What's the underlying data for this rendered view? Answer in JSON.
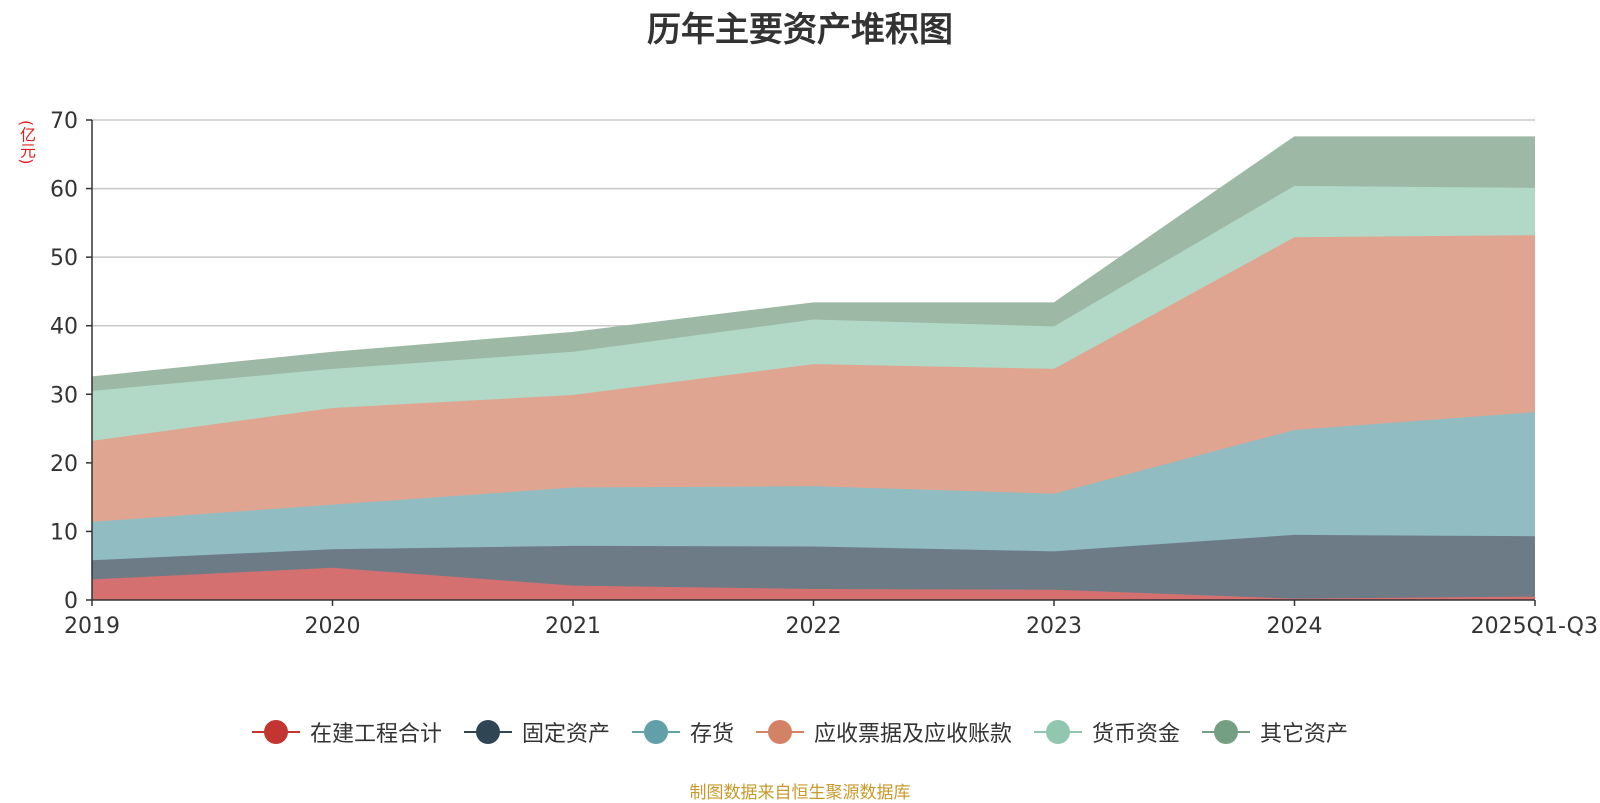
{
  "chart_data": {
    "type": "area",
    "stacked": true,
    "title": "历年主要资产堆积图",
    "unit_label": "(亿元)",
    "categories": [
      "2019",
      "2020",
      "2021",
      "2022",
      "2023",
      "2024",
      "2025Q1-Q3"
    ],
    "y_ticks": [
      "0",
      "10",
      "20",
      "30",
      "40",
      "50",
      "60",
      "70"
    ],
    "ylim": [
      0,
      70
    ],
    "grid": true,
    "legend_position": "bottom",
    "series": [
      {
        "name": "在建工程合计",
        "color": "#c23531",
        "area_color": "#d47170",
        "values": [
          3.0,
          4.7,
          2.1,
          1.6,
          1.5,
          0.2,
          0.5
        ]
      },
      {
        "name": "固定资产",
        "color": "#2f4554",
        "area_color": "#6d7b87",
        "values": [
          2.8,
          2.7,
          5.8,
          6.2,
          5.6,
          9.3,
          8.8
        ]
      },
      {
        "name": "存货",
        "color": "#61a0a8",
        "area_color": "#90bcc2",
        "values": [
          5.6,
          6.5,
          8.5,
          8.8,
          8.4,
          15.3,
          18.1
        ]
      },
      {
        "name": "应收票据及应收账款",
        "color": "#d48265",
        "area_color": "#e0a590",
        "values": [
          11.8,
          14.1,
          13.5,
          17.8,
          18.2,
          28.1,
          25.8
        ]
      },
      {
        "name": "货币资金",
        "color": "#91c7ae",
        "area_color": "#b2d8c7",
        "values": [
          7.3,
          5.7,
          6.3,
          6.5,
          6.2,
          7.5,
          6.9
        ]
      },
      {
        "name": "其它资产",
        "color": "#749f83",
        "area_color": "#9db8a5",
        "values": [
          2.0,
          2.4,
          2.8,
          2.4,
          3.4,
          7.1,
          7.4
        ]
      }
    ]
  },
  "source_note": "制图数据来自恒生聚源数据库"
}
